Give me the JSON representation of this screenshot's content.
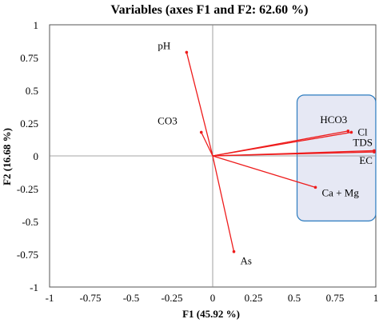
{
  "chart_data": {
    "type": "scatter",
    "title": "Variables (axes F1 and F2: 62.60 %)",
    "xlabel": "F1 (45.92 %)",
    "ylabel": "F2 (16.68 %)",
    "xlim": [
      -1,
      1
    ],
    "ylim": [
      -1,
      1
    ],
    "x_ticks": [
      "-1",
      "-0.75",
      "-0.5",
      "-0.25",
      "0",
      "0.25",
      "0.5",
      "0.75",
      "1"
    ],
    "y_ticks": [
      "1",
      "0.75",
      "0.5",
      "0.25",
      "0",
      "-0.25",
      "-0.5",
      "-0.75",
      "-1"
    ],
    "grid": false,
    "vectors": [
      {
        "name": "pH",
        "x": -0.16,
        "y": 0.79
      },
      {
        "name": "CO3",
        "x": -0.07,
        "y": 0.18
      },
      {
        "name": "HCO3",
        "x": 0.83,
        "y": 0.19
      },
      {
        "name": "Cl",
        "x": 0.85,
        "y": 0.18
      },
      {
        "name": "TDS",
        "x": 0.99,
        "y": 0.04
      },
      {
        "name": "EC",
        "x": 0.99,
        "y": 0.03
      },
      {
        "name": "Ca + Mg",
        "x": 0.63,
        "y": -0.24
      },
      {
        "name": "As",
        "x": 0.13,
        "y": -0.73
      }
    ],
    "highlight_group": [
      "HCO3",
      "Cl",
      "TDS",
      "EC",
      "Ca + Mg"
    ],
    "colors": {
      "vector": "#ee1c1c",
      "group_fill": "#e6e8f4",
      "group_stroke": "#2b7bbf"
    }
  }
}
